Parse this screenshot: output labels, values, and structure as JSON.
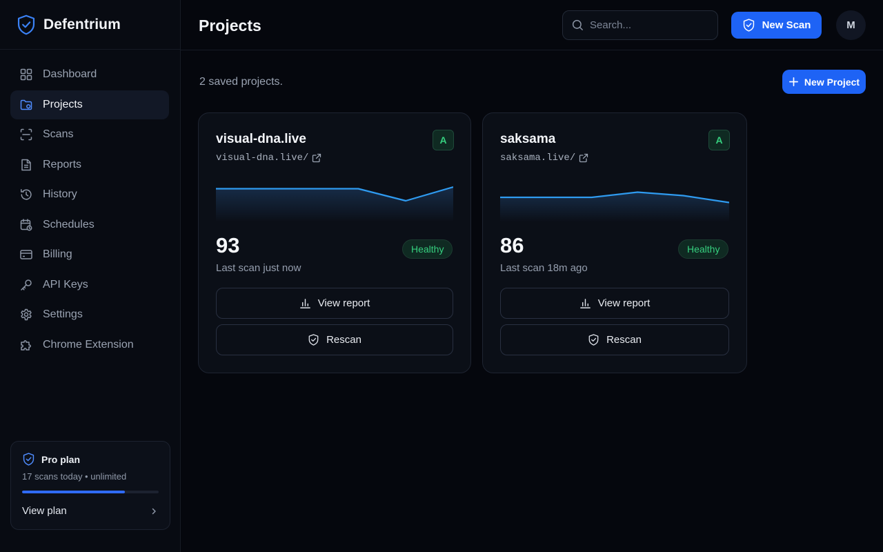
{
  "brand": {
    "name": "Defentrium",
    "logo_icon": "shield-check-icon"
  },
  "header": {
    "title": "Projects",
    "search_placeholder": "Search...",
    "new_scan_label": "New Scan",
    "avatar_initial": "M"
  },
  "sidebar": {
    "items": [
      {
        "label": "Dashboard",
        "icon": "grid-icon",
        "active": false
      },
      {
        "label": "Projects",
        "icon": "folder-icon",
        "active": true
      },
      {
        "label": "Scans",
        "icon": "scan-icon",
        "active": false
      },
      {
        "label": "Reports",
        "icon": "file-icon",
        "active": false
      },
      {
        "label": "History",
        "icon": "history-icon",
        "active": false
      },
      {
        "label": "Schedules",
        "icon": "calendar-icon",
        "active": false
      },
      {
        "label": "Billing",
        "icon": "credit-card-icon",
        "active": false
      },
      {
        "label": "API Keys",
        "icon": "key-icon",
        "active": false
      },
      {
        "label": "Settings",
        "icon": "gear-icon",
        "active": false
      },
      {
        "label": "Chrome Extension",
        "icon": "puzzle-icon",
        "active": false
      }
    ],
    "plan": {
      "title": "Pro plan",
      "usage": "17 scans today • unlimited",
      "progress": 0.75,
      "link_label": "View plan"
    }
  },
  "main": {
    "subtitle": "2 saved projects.",
    "new_project_label": "New Project",
    "projects": [
      {
        "name": "visual-dna.live",
        "url": "visual-dna.live/",
        "grade": "A",
        "score": "93",
        "status": "Healthy",
        "last_scan": "Last scan just now",
        "view_report_label": "View report",
        "rescan_label": "Rescan",
        "trend": [
          93,
          93,
          93,
          93,
          86,
          94
        ]
      },
      {
        "name": "saksama",
        "url": "saksama.live/",
        "grade": "A",
        "score": "86",
        "status": "Healthy",
        "last_scan": "Last scan 18m ago",
        "view_report_label": "View report",
        "rescan_label": "Rescan",
        "trend": [
          88,
          88,
          88,
          91,
          89,
          85
        ]
      }
    ]
  },
  "colors": {
    "accent": "#1e63f5",
    "background": "#05070d",
    "healthy": "#36d07f",
    "sparkline": "#2f9bf0"
  }
}
